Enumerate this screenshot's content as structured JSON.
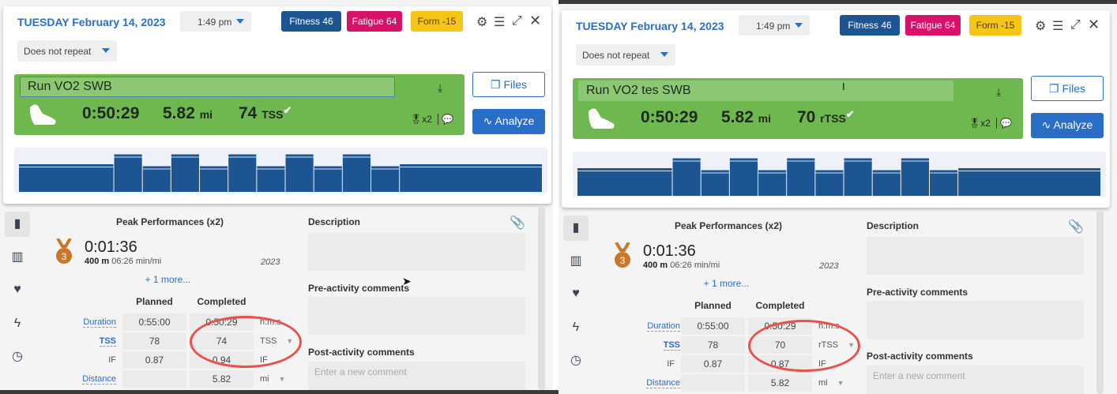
{
  "panels": [
    {
      "date": "TUESDAY February 14, 2023",
      "time": "1:49 pm",
      "repeat": "Does not repeat",
      "fitness": "Fitness 46",
      "fatigue": "Fatigue 64",
      "form": "Form -15",
      "workout_name": "Run VO2 SWB",
      "duration": "0:50:29",
      "distance": "5.82",
      "distance_unit": "mi",
      "tss": "74",
      "tss_unit": "TSS",
      "medals": "x2",
      "files_label": "Files",
      "analyze_label": "Analyze",
      "peak_title": "Peak Performances (x2)",
      "peak_time": "0:01:36",
      "peak_distance": "400 m",
      "peak_pace": "06:26 min/mi",
      "peak_year": "2023",
      "medal_rank": "3",
      "more": "+ 1 more...",
      "col_planned": "Planned",
      "col_completed": "Completed",
      "rows": [
        {
          "label": "Duration",
          "planned": "0:55:00",
          "completed": "0:50:29",
          "unit": "h:m:s"
        },
        {
          "label": "TSS",
          "planned": "78",
          "completed": "74",
          "unit": "TSS"
        },
        {
          "label": "IF",
          "planned": "0.87",
          "completed": "0.94",
          "unit": "IF"
        },
        {
          "label": "Distance",
          "planned": "",
          "completed": "5.82",
          "unit": "mi"
        }
      ],
      "description_label": "Description",
      "pre_label": "Pre-activity comments",
      "post_label": "Post-activity comments",
      "comment_placeholder": "Enter a new comment"
    },
    {
      "date": "TUESDAY February 14, 2023",
      "time": "1:49 pm",
      "repeat": "Does not repeat",
      "fitness": "Fitness 46",
      "fatigue": "Fatigue 64",
      "form": "Form -15",
      "workout_name": "Run VO2 tes SWB",
      "duration": "0:50:29",
      "distance": "5.82",
      "distance_unit": "mi",
      "tss": "70",
      "tss_unit": "rTSS",
      "medals": "x2",
      "files_label": "Files",
      "analyze_label": "Analyze",
      "peak_title": "Peak Performances (x2)",
      "peak_time": "0:01:36",
      "peak_distance": "400 m",
      "peak_pace": "06:26 min/mi",
      "peak_year": "2023",
      "medal_rank": "3",
      "more": "+ 1 more...",
      "col_planned": "Planned",
      "col_completed": "Completed",
      "rows": [
        {
          "label": "Duration",
          "planned": "0:55:00",
          "completed": "0:50:29",
          "unit": "h:m:s"
        },
        {
          "label": "TSS",
          "planned": "78",
          "completed": "70",
          "unit": "rTSS"
        },
        {
          "label": "IF",
          "planned": "0.87",
          "completed": "0.87",
          "unit": "IF"
        },
        {
          "label": "Distance",
          "planned": "",
          "completed": "5.82",
          "unit": "mi"
        }
      ],
      "description_label": "Description",
      "pre_label": "Pre-activity comments",
      "post_label": "Post-activity comments",
      "comment_placeholder": "Enter a new comment"
    }
  ],
  "structure": {
    "intervals": [
      {
        "duration": 10,
        "intensity": 0.7
      },
      {
        "duration": 3,
        "intensity": 0.95
      },
      {
        "duration": 3,
        "intensity": 0.65
      },
      {
        "duration": 3,
        "intensity": 0.95
      },
      {
        "duration": 3,
        "intensity": 0.65
      },
      {
        "duration": 3,
        "intensity": 0.95
      },
      {
        "duration": 3,
        "intensity": 0.65
      },
      {
        "duration": 3,
        "intensity": 0.95
      },
      {
        "duration": 3,
        "intensity": 0.65
      },
      {
        "duration": 3,
        "intensity": 0.95
      },
      {
        "duration": 3,
        "intensity": 0.65
      },
      {
        "duration": 15,
        "intensity": 0.7
      }
    ],
    "bar_color": "#1d5592"
  },
  "colors": {
    "fitness": "#1d5592",
    "fatigue": "#d8126a",
    "form": "#f5c518",
    "completed": "#6eb84f",
    "accent": "#2a6ec8",
    "highlight_ring": "#e8524a"
  }
}
